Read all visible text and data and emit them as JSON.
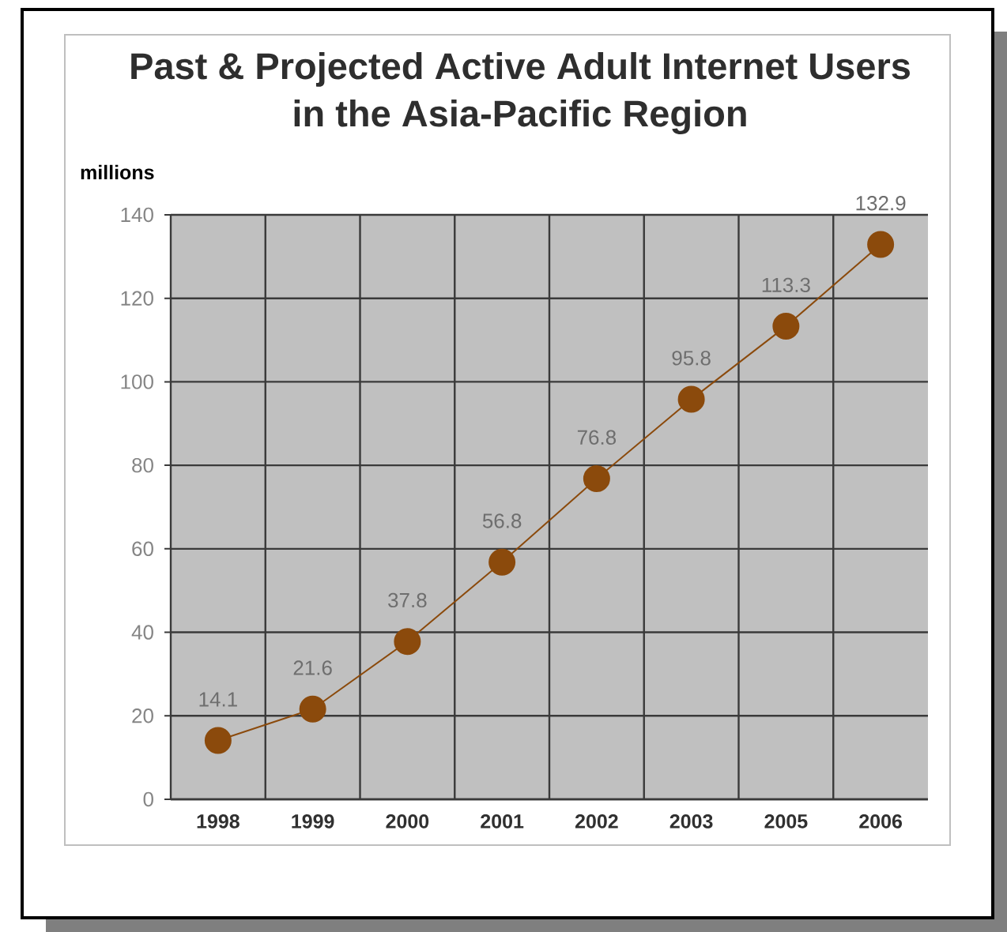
{
  "chart_data": {
    "type": "line",
    "title": "Past & Projected Active Adult Internet Users in the Asia-Pacific Region",
    "ylabel": "millions",
    "categories": [
      "1998",
      "1999",
      "2000",
      "2001",
      "2002",
      "2003",
      "2005",
      "2006"
    ],
    "series": [
      {
        "color": "#8b4a0c",
        "values": [
          14.1,
          21.6,
          37.8,
          56.8,
          76.8,
          95.8,
          113.3,
          132.9
        ]
      }
    ],
    "ylim": [
      0,
      140
    ],
    "yticks": [
      0,
      20,
      40,
      60,
      80,
      100,
      120,
      140
    ],
    "grid": true,
    "marker": "circle",
    "line_style": "solid",
    "data_labels": true
  }
}
